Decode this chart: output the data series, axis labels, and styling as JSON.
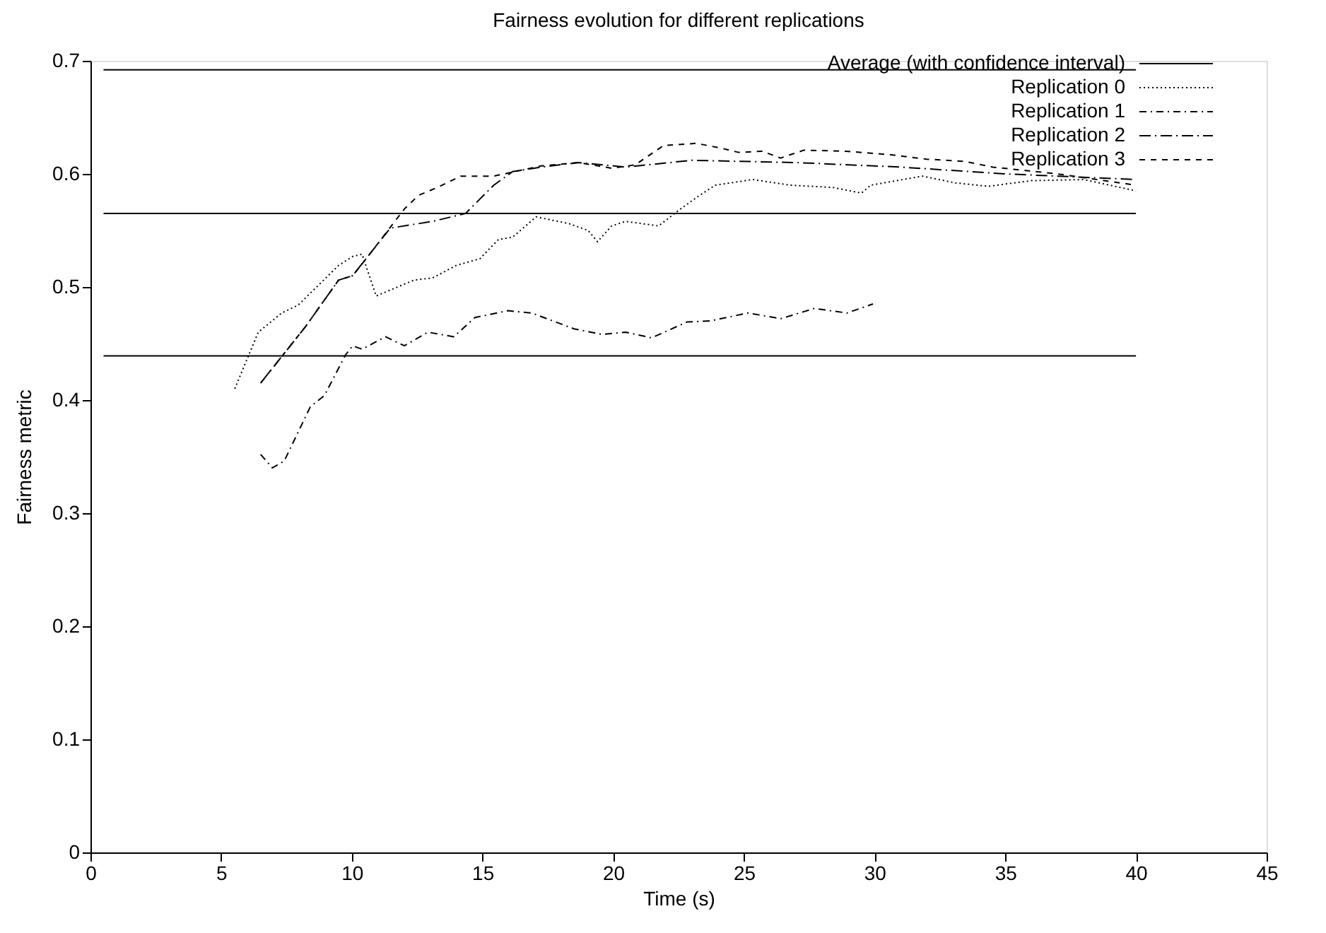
{
  "chart_data": {
    "type": "line",
    "title": "Fairness evolution for different replications",
    "xlabel": "Time (s)",
    "ylabel": "Fairness metric",
    "xlim": [
      0,
      45
    ],
    "xticks": [
      0,
      5,
      10,
      15,
      20,
      25,
      30,
      35,
      40,
      45
    ],
    "ylim": [
      0,
      0.7
    ],
    "yticks": [
      0,
      0.1,
      0.2,
      0.3,
      0.4,
      0.5,
      0.6,
      0.7
    ],
    "grid": false,
    "legend": "top right",
    "marker": "none",
    "series": [
      {
        "name": "Average (with confidence interval)",
        "color": "#000000",
        "line_style": "solid",
        "x": [
          0.5,
          40
        ],
        "values": [
          0.565,
          0.565
        ]
      },
      {
        "color": "#000000",
        "line_style": "solid",
        "x": [
          0.5,
          40
        ],
        "values": [
          0.692,
          0.692
        ]
      },
      {
        "color": "#000000",
        "line_style": "solid",
        "x": [
          0.5,
          40
        ],
        "values": [
          0.439,
          0.439
        ]
      },
      {
        "name": "Replication 0",
        "color": "#000000",
        "line_style": "dotted",
        "x": [
          5.52,
          6.42,
          7.32,
          7.95,
          9.49,
          10.03,
          10.39,
          10.93,
          12.37,
          13.09,
          13.99,
          14.9,
          15.61,
          16.15,
          17.05,
          18.31,
          19.04,
          19.4,
          19.94,
          20.48,
          21.74,
          22.46,
          23.18,
          23.9,
          25.34,
          26.78,
          28.4,
          29.5,
          29.85,
          31.83,
          33.1,
          34.35,
          36,
          38,
          40
        ],
        "values": [
          0.41,
          0.46,
          0.477,
          0.484,
          0.519,
          0.527,
          0.529,
          0.492,
          0.506,
          0.508,
          0.519,
          0.525,
          0.542,
          0.544,
          0.562,
          0.556,
          0.55,
          0.54,
          0.554,
          0.558,
          0.554,
          0.567,
          0.579,
          0.59,
          0.595,
          0.59,
          0.588,
          0.583,
          0.59,
          0.598,
          0.592,
          0.589,
          0.594,
          0.595,
          0.585
        ]
      },
      {
        "name": "Replication 1",
        "color": "#000000",
        "line_style": "dashdot",
        "x": [
          6.51,
          6.96,
          7.41,
          8.41,
          8.95,
          9.76,
          10.03,
          10.39,
          11.29,
          12.01,
          12.91,
          13.9,
          14.71,
          15.97,
          16.88,
          18.5,
          19.58,
          20.48,
          21.47,
          22.82,
          23.72,
          25.16,
          26.42,
          27.69,
          28.95,
          29.94
        ],
        "values": [
          0.352,
          0.34,
          0.346,
          0.394,
          0.404,
          0.44,
          0.448,
          0.445,
          0.456,
          0.448,
          0.46,
          0.456,
          0.473,
          0.479,
          0.477,
          0.463,
          0.458,
          0.46,
          0.455,
          0.469,
          0.47,
          0.477,
          0.472,
          0.481,
          0.477,
          0.485
        ]
      },
      {
        "name": "Replication 2",
        "color": "#000000",
        "line_style": "dashdot",
        "x": [
          6.51,
          8.23,
          9.49,
          10.03,
          10.75,
          11.47,
          13.09,
          14.35,
          15.43,
          16.15,
          17.23,
          18.68,
          20.48,
          23,
          27,
          31,
          35,
          40
        ],
        "values": [
          0.415,
          0.465,
          0.506,
          0.51,
          0.531,
          0.552,
          0.558,
          0.565,
          0.59,
          0.602,
          0.606,
          0.61,
          0.606,
          0.612,
          0.61,
          0.606,
          0.6,
          0.595
        ]
      },
      {
        "name": "Replication 3",
        "color": "#000000",
        "line_style": "dashed",
        "x": [
          6.51,
          8.23,
          9.49,
          10.03,
          10.75,
          12.01,
          12.55,
          13.27,
          14.17,
          15.43,
          17.23,
          18.68,
          19.94,
          20.84,
          21.92,
          23.18,
          24.08,
          24.8,
          25.7,
          26.4,
          27.3,
          28.9,
          30.57,
          32.0,
          33.45,
          34.53,
          37,
          40
        ],
        "values": [
          0.415,
          0.465,
          0.506,
          0.51,
          0.531,
          0.569,
          0.581,
          0.588,
          0.598,
          0.598,
          0.607,
          0.61,
          0.605,
          0.608,
          0.625,
          0.627,
          0.623,
          0.619,
          0.62,
          0.614,
          0.621,
          0.62,
          0.617,
          0.613,
          0.611,
          0.606,
          0.6,
          0.59
        ]
      }
    ]
  }
}
